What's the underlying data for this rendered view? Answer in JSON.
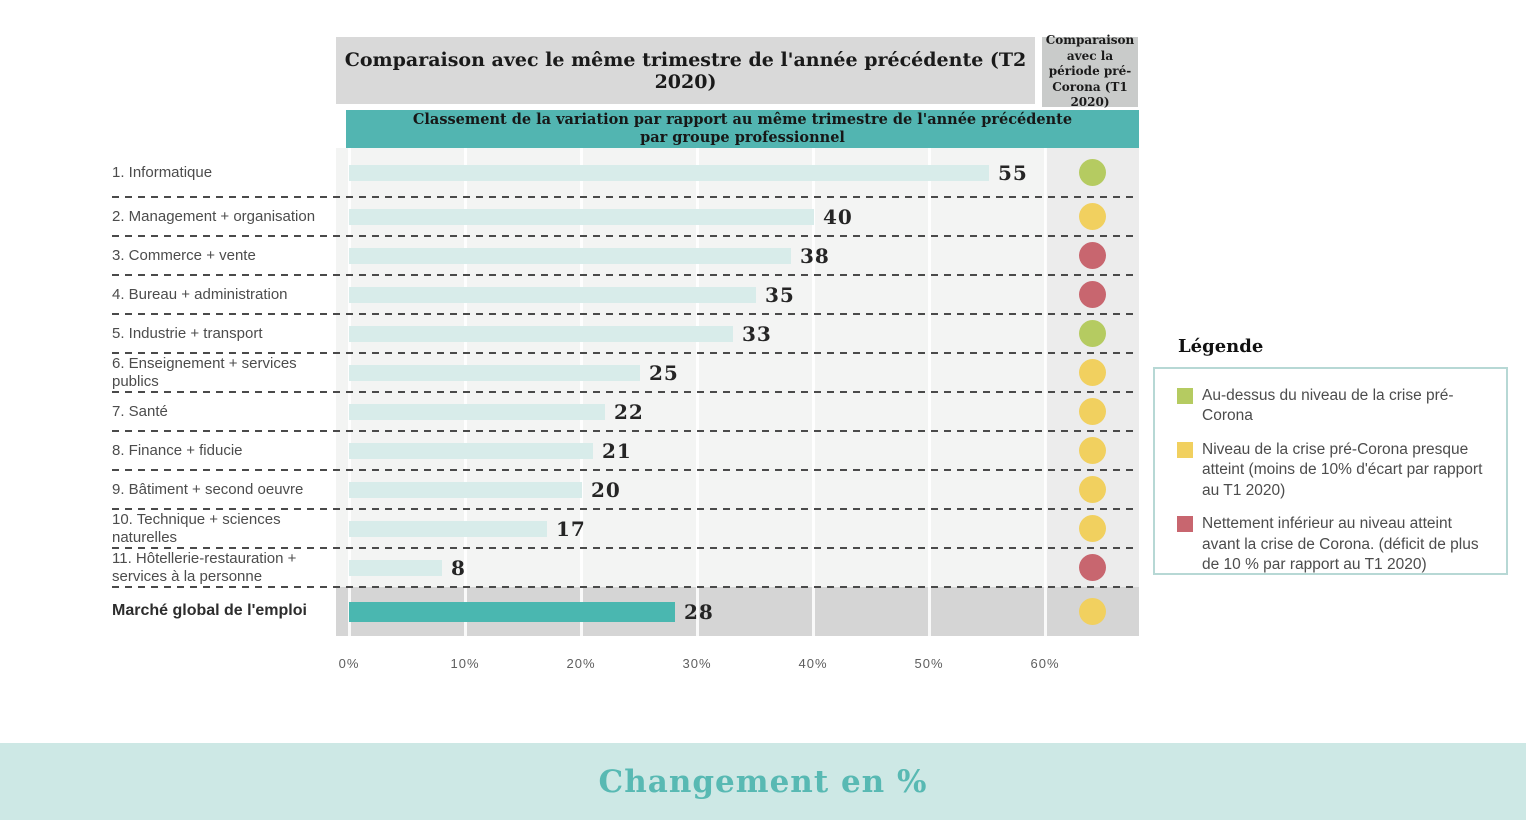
{
  "header": {
    "main_title": "Comparaison avec le même trimestre de l'année précédente (T2 2020)",
    "side_title": "Comparaison avec la période pré-Corona (T1 2020)",
    "banner_line1": "Classement de la variation par rapport au même trimestre de l'année précédente",
    "banner_line2": "par groupe professionnel"
  },
  "chart_data": {
    "type": "bar",
    "orientation": "horizontal",
    "title": "Classement de la variation par rapport au même trimestre de l'année précédente par groupe professionnel",
    "categories": [
      "1. Informatique",
      "2. Management + organisation",
      "3. Commerce + vente",
      "4. Bureau + administration",
      "5. Industrie + transport",
      "6. Enseignement + services publics",
      "7. Santé",
      "8. Finance + fiducie",
      "9. Bâtiment + second oeuvre",
      "10. Technique + sciences naturelles",
      "11. Hôtellerie-restauration + services à la personne",
      "Marché global de l'emploi"
    ],
    "values": [
      55,
      40,
      38,
      35,
      33,
      25,
      22,
      21,
      20,
      17,
      8,
      28
    ],
    "unit": "%",
    "x_ticks": [
      "0%",
      "10%",
      "20%",
      "30%",
      "40%",
      "50%",
      "60%"
    ],
    "xlim": [
      0,
      60
    ],
    "xlabel": "Changement en %",
    "grid": "vertical-white-lines",
    "legend_position": "right",
    "dot_colors": [
      "green",
      "yellow",
      "red",
      "red",
      "green",
      "yellow",
      "yellow",
      "yellow",
      "yellow",
      "yellow",
      "red",
      "yellow"
    ]
  },
  "legend": {
    "title": "Légende",
    "items": [
      {
        "color_name": "green",
        "color": "#b5cb61",
        "label": "Au-dessus du niveau de la crise pré-Corona"
      },
      {
        "color_name": "yellow",
        "color": "#f1d05f",
        "label": "Niveau de la crise pré-Corona presque atteint (moins de 10% d'écart par rapport au T1 2020)"
      },
      {
        "color_name": "red",
        "color": "#c8666f",
        "label": "Nettement inférieur au niveau atteint avant la crise de Corona. (déficit de plus de 10 % par rapport au T1 2020)"
      }
    ]
  },
  "footer": {
    "label": "Changement en %"
  },
  "colors": {
    "green": "#b5cb61",
    "yellow": "#f1d05f",
    "red": "#c8666f",
    "bar": "#d8ecea",
    "bar_emphasis": "#4ab7b0",
    "banner_teal": "#52b5b1",
    "header_gray": "#d9d9d9",
    "footer_bg": "#cde8e5",
    "footer_text": "#58b9b3"
  }
}
